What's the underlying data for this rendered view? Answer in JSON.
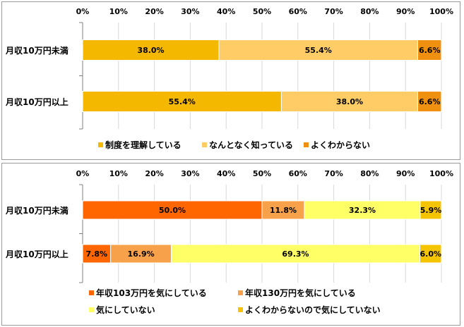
{
  "chart_data": [
    {
      "type": "bar",
      "orientation": "horizontal",
      "stacked": true,
      "categories": [
        "月収10万円未満",
        "月収10万円以上"
      ],
      "xlim": [
        0,
        100
      ],
      "x_ticks": [
        "0%",
        "10%",
        "20%",
        "30%",
        "40%",
        "50%",
        "60%",
        "70%",
        "80%",
        "90%",
        "100%"
      ],
      "legend_position": "bottom",
      "series": [
        {
          "name": "制度を理解している",
          "values": [
            38.0,
            55.4
          ],
          "labels": [
            "38.0%",
            "55.4%"
          ],
          "color": "#F5B800"
        },
        {
          "name": "なんとなく知っている",
          "values": [
            55.4,
            38.0
          ],
          "labels": [
            "55.4%",
            "38.0%"
          ],
          "color": "#FFCC66"
        },
        {
          "name": "よくわからない",
          "values": [
            6.6,
            6.6
          ],
          "labels": [
            "6.6%",
            "6.6%"
          ],
          "color": "#F09010"
        }
      ]
    },
    {
      "type": "bar",
      "orientation": "horizontal",
      "stacked": true,
      "categories": [
        "月収10万円未満",
        "月収10万円以上"
      ],
      "xlim": [
        0,
        100
      ],
      "x_ticks": [
        "0%",
        "10%",
        "20%",
        "30%",
        "40%",
        "50%",
        "60%",
        "70%",
        "80%",
        "90%",
        "100%"
      ],
      "legend_position": "bottom",
      "series": [
        {
          "name": "年収103万円を気にしている",
          "values": [
            50.0,
            7.8
          ],
          "labels": [
            "50.0%",
            "7.8%"
          ],
          "color": "#FF6600"
        },
        {
          "name": "年収130万円を気にしている",
          "values": [
            11.8,
            16.9
          ],
          "labels": [
            "11.8%",
            "16.9%"
          ],
          "color": "#F7A14A"
        },
        {
          "name": "気にしていない",
          "values": [
            32.3,
            69.3
          ],
          "labels": [
            "32.3%",
            "69.3%"
          ],
          "color": "#FFFF66"
        },
        {
          "name": "よくわからないので気にしていない",
          "values": [
            5.9,
            6.0
          ],
          "labels": [
            "5.9%",
            "6.0%"
          ],
          "color": "#F5C400"
        }
      ]
    }
  ]
}
